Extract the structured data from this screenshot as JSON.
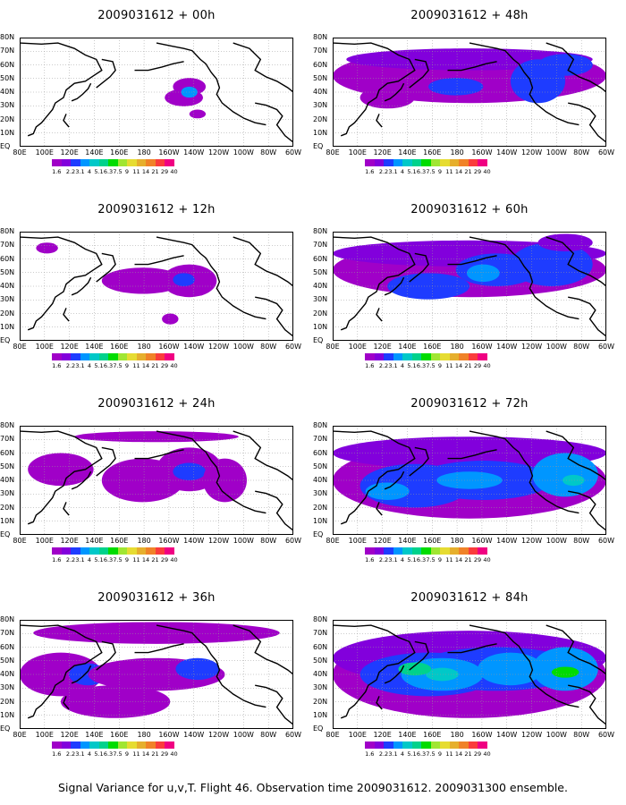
{
  "panels": [
    {
      "title": "2009031612 + 00h",
      "level": 0
    },
    {
      "title": "2009031612 + 48h",
      "level": 4
    },
    {
      "title": "2009031612 + 12h",
      "level": 1
    },
    {
      "title": "2009031612 + 60h",
      "level": 5
    },
    {
      "title": "2009031612 + 24h",
      "level": 2
    },
    {
      "title": "2009031612 + 72h",
      "level": 6
    },
    {
      "title": "2009031612 + 36h",
      "level": 3
    },
    {
      "title": "2009031612 + 84h",
      "level": 7
    }
  ],
  "lat_labels": [
    "80N",
    "70N",
    "60N",
    "50N",
    "40N",
    "30N",
    "20N",
    "10N",
    "EQ"
  ],
  "lon_labels": [
    "80E",
    "100E",
    "120E",
    "140E",
    "160E",
    "180",
    "160W",
    "140W",
    "120W",
    "100W",
    "80W",
    "60W"
  ],
  "colorbar": {
    "colors": [
      "#a000c8",
      "#8200dc",
      "#1e3cff",
      "#0096ff",
      "#00c8c8",
      "#00d28c",
      "#00dc00",
      "#a0e632",
      "#e6dc32",
      "#e6af2d",
      "#f08228",
      "#fa3c3c",
      "#f00082"
    ],
    "labels": [
      "1.6",
      "2.2",
      "3.1",
      "4",
      "5.1",
      "6.3",
      "7.5",
      "9",
      "11",
      "14",
      "21",
      "29",
      "40"
    ]
  },
  "caption": "Signal Variance for u,v,T. Flight 46. Observation time 2009031612. 2009031300 ensemble."
}
